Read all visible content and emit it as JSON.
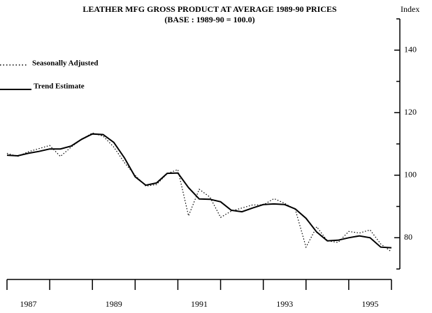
{
  "chart_data": {
    "type": "line",
    "title": "LEATHER MFG GROSS PRODUCT AT AVERAGE 1989-90 PRICES",
    "subtitle": "(BASE : 1989-90 = 100.0)",
    "y_label": "Index",
    "x": [
      1986.5,
      1986.75,
      1987,
      1987.25,
      1987.5,
      1987.75,
      1988,
      1988.25,
      1988.5,
      1988.75,
      1989,
      1989.25,
      1989.5,
      1989.75,
      1990,
      1990.25,
      1990.5,
      1990.75,
      1991,
      1991.25,
      1991.5,
      1991.75,
      1992,
      1992.25,
      1992.5,
      1992.75,
      1993,
      1993.25,
      1993.5,
      1993.75,
      1994,
      1994.25,
      1994.5,
      1994.75,
      1995,
      1995.25,
      1995.5
    ],
    "series": [
      {
        "name": "Seasonally Adjusted",
        "color": "#000000",
        "style": "dotted",
        "values": [
          107,
          106,
          107.5,
          108.5,
          109.5,
          106,
          109,
          111.5,
          113.5,
          112.5,
          109,
          104,
          100,
          96.5,
          97,
          100.5,
          101.8,
          87,
          95.5,
          93,
          86.5,
          88.5,
          89.5,
          90.5,
          90.5,
          92.5,
          91,
          89,
          77,
          83.5,
          79,
          78.5,
          82,
          81.5,
          82.5,
          78,
          75.5
        ]
      },
      {
        "name": "Trend Estimate",
        "color": "#000000",
        "style": "solid",
        "values": [
          106.4,
          106.2,
          107,
          107.6,
          108.4,
          108.4,
          109.3,
          111.5,
          113.2,
          113,
          110.5,
          105.5,
          99.5,
          96.8,
          97.5,
          100.6,
          100.7,
          96,
          92.4,
          92.3,
          91.5,
          88.8,
          88.3,
          89.5,
          90.6,
          90.8,
          90.6,
          89.2,
          86.2,
          81.8,
          79,
          79.2,
          80,
          80.6,
          80,
          77,
          76.8
        ]
      }
    ],
    "xlim": [
      1986.5,
      1995.5
    ],
    "xticks": [
      1986.5,
      1987.5,
      1988.5,
      1989.5,
      1990.5,
      1991.5,
      1992.5,
      1993.5,
      1994.5,
      1995.5
    ],
    "xtick_labels": [
      1987,
      1989,
      1991,
      1993,
      1995
    ],
    "ylim": [
      70,
      150
    ],
    "yticks": [
      80,
      100,
      120,
      140
    ],
    "yminor_ticks": [
      70,
      90,
      110,
      130,
      150
    ]
  }
}
